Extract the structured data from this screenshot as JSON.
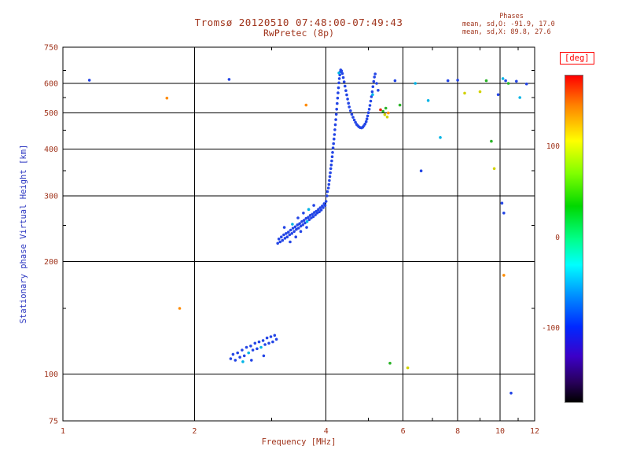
{
  "header": {
    "title": "Tromsø 20120510 07:48:00-07:49:43",
    "subtitle": "RwPretec (8p)",
    "phases_title": "Phases",
    "phases_o": "mean, sd,O: -91.9, 17.0",
    "phases_x": "mean, sd,X:  89.8, 27.6"
  },
  "colors": {
    "text_red": "#a0341c",
    "ylabel_blue": "#2a35c0",
    "deg_red": "#ff0000",
    "axis_black": "#000000"
  },
  "chart_data": {
    "type": "scatter",
    "title": "Tromsø 20120510 07:48:00-07:49:43",
    "subtitle": "RwPretec (8p)",
    "xlabel": "Frequency [MHz]",
    "ylabel": "Stationary phase Virtual Height [km]",
    "x_scale": "log",
    "y_scale": "log",
    "xlim": [
      1,
      12
    ],
    "ylim": [
      75,
      750
    ],
    "x_major_ticks": [
      1,
      2,
      4,
      6,
      8,
      10,
      12
    ],
    "x_minor_ticks": [
      3,
      5,
      7,
      9,
      11
    ],
    "y_major_ticks": [
      75,
      100,
      200,
      300,
      400,
      500,
      600,
      750
    ],
    "y_minor_ticks": [
      150,
      250,
      350,
      450,
      550,
      650
    ],
    "x_gridlines": [
      2,
      4,
      6,
      8,
      10
    ],
    "y_gridlines": [
      100,
      200,
      300,
      400,
      500,
      600
    ],
    "grid": true,
    "legend": "colorbar-right",
    "colorbar": {
      "label": "[deg]",
      "range": [
        -180,
        180
      ],
      "ticks": [
        100,
        0,
        -100
      ],
      "stops": [
        [
          0,
          "#ff0000"
        ],
        [
          9,
          "#ff8000"
        ],
        [
          20,
          "#ffff00"
        ],
        [
          30,
          "#80ff00"
        ],
        [
          40,
          "#00d800"
        ],
        [
          50,
          "#00ff88"
        ],
        [
          58,
          "#00ffff"
        ],
        [
          68,
          "#0088ff"
        ],
        [
          77,
          "#0028ff"
        ],
        [
          86,
          "#3c00c8"
        ],
        [
          94,
          "#28005a"
        ],
        [
          100,
          "#000000"
        ]
      ]
    },
    "palette": {
      "b": "#2446e6",
      "c": "#00b4e6",
      "g": "#2ab428",
      "y": "#d2d200",
      "o": "#ff8c00",
      "r": "#e62000",
      "k": "#202020"
    },
    "points": [
      [
        2.42,
        110,
        "b"
      ],
      [
        2.45,
        113,
        "b"
      ],
      [
        2.48,
        109,
        "b"
      ],
      [
        2.51,
        114,
        "b"
      ],
      [
        2.54,
        111,
        "b"
      ],
      [
        2.57,
        116,
        "b"
      ],
      [
        2.6,
        112,
        "b"
      ],
      [
        2.63,
        118,
        "b"
      ],
      [
        2.66,
        114,
        "c"
      ],
      [
        2.69,
        119,
        "b"
      ],
      [
        2.72,
        116,
        "b"
      ],
      [
        2.75,
        121,
        "b"
      ],
      [
        2.78,
        117,
        "b"
      ],
      [
        2.81,
        122,
        "b"
      ],
      [
        2.84,
        118,
        "c"
      ],
      [
        2.87,
        123,
        "b"
      ],
      [
        2.9,
        120,
        "b"
      ],
      [
        2.93,
        125,
        "b"
      ],
      [
        2.96,
        121,
        "b"
      ],
      [
        2.99,
        126,
        "b"
      ],
      [
        3.02,
        122,
        "b"
      ],
      [
        3.05,
        127,
        "b"
      ],
      [
        3.08,
        124,
        "b"
      ],
      [
        2.58,
        108,
        "c"
      ],
      [
        2.7,
        109,
        "b"
      ],
      [
        2.88,
        112,
        "b"
      ],
      [
        3.1,
        224,
        "b"
      ],
      [
        3.12,
        230,
        "b"
      ],
      [
        3.14,
        226,
        "b"
      ],
      [
        3.16,
        233,
        "b"
      ],
      [
        3.18,
        228,
        "b"
      ],
      [
        3.2,
        236,
        "b"
      ],
      [
        3.22,
        231,
        "b"
      ],
      [
        3.24,
        238,
        "b"
      ],
      [
        3.26,
        233,
        "b"
      ],
      [
        3.28,
        240,
        "b"
      ],
      [
        3.3,
        236,
        "b"
      ],
      [
        3.32,
        243,
        "b"
      ],
      [
        3.34,
        238,
        "b"
      ],
      [
        3.36,
        246,
        "b"
      ],
      [
        3.38,
        241,
        "b"
      ],
      [
        3.4,
        248,
        "b"
      ],
      [
        3.42,
        244,
        "b"
      ],
      [
        3.44,
        251,
        "b"
      ],
      [
        3.46,
        246,
        "b"
      ],
      [
        3.48,
        253,
        "b"
      ],
      [
        3.5,
        249,
        "b"
      ],
      [
        3.52,
        256,
        "b"
      ],
      [
        3.54,
        251,
        "b"
      ],
      [
        3.56,
        258,
        "b"
      ],
      [
        3.58,
        254,
        "b"
      ],
      [
        3.6,
        261,
        "b"
      ],
      [
        3.62,
        256,
        "c"
      ],
      [
        3.64,
        263,
        "b"
      ],
      [
        3.66,
        259,
        "b"
      ],
      [
        3.68,
        266,
        "b"
      ],
      [
        3.7,
        262,
        "b"
      ],
      [
        3.72,
        268,
        "b"
      ],
      [
        3.74,
        264,
        "b"
      ],
      [
        3.76,
        271,
        "b"
      ],
      [
        3.78,
        267,
        "b"
      ],
      [
        3.8,
        273,
        "b"
      ],
      [
        3.82,
        270,
        "b"
      ],
      [
        3.84,
        276,
        "b"
      ],
      [
        3.86,
        272,
        "b"
      ],
      [
        3.88,
        279,
        "b"
      ],
      [
        3.9,
        275,
        "b"
      ],
      [
        3.92,
        282,
        "b"
      ],
      [
        3.94,
        279,
        "b"
      ],
      [
        3.96,
        286,
        "b"
      ],
      [
        3.98,
        283,
        "b"
      ],
      [
        4.0,
        290,
        "b"
      ],
      [
        3.35,
        252,
        "c"
      ],
      [
        3.45,
        262,
        "b"
      ],
      [
        3.55,
        270,
        "b"
      ],
      [
        3.31,
        226,
        "b"
      ],
      [
        3.5,
        241,
        "b"
      ],
      [
        3.61,
        247,
        "b"
      ],
      [
        3.65,
        276,
        "c"
      ],
      [
        3.75,
        283,
        "b"
      ],
      [
        3.21,
        247,
        "b"
      ],
      [
        3.41,
        233,
        "b"
      ],
      [
        4.02,
        300,
        "b"
      ],
      [
        4.03,
        308,
        "b"
      ],
      [
        4.05,
        315,
        "b"
      ],
      [
        4.06,
        322,
        "b"
      ],
      [
        4.07,
        330,
        "b"
      ],
      [
        4.08,
        338,
        "b"
      ],
      [
        4.09,
        346,
        "b"
      ],
      [
        4.1,
        355,
        "b"
      ],
      [
        4.11,
        363,
        "b"
      ],
      [
        4.12,
        372,
        "b"
      ],
      [
        4.13,
        382,
        "b"
      ],
      [
        4.14,
        392,
        "b"
      ],
      [
        4.15,
        403,
        "b"
      ],
      [
        4.16,
        414,
        "b"
      ],
      [
        4.17,
        426,
        "b"
      ],
      [
        4.18,
        438,
        "b"
      ],
      [
        4.19,
        451,
        "b"
      ],
      [
        4.2,
        465,
        "b"
      ],
      [
        4.21,
        480,
        "b"
      ],
      [
        4.22,
        496,
        "b"
      ],
      [
        4.23,
        512,
        "b"
      ],
      [
        4.24,
        530,
        "b"
      ],
      [
        4.25,
        548,
        "b"
      ],
      [
        4.26,
        566,
        "b"
      ],
      [
        4.27,
        584,
        "b"
      ],
      [
        4.28,
        602,
        "b"
      ],
      [
        4.29,
        618,
        "b"
      ],
      [
        4.3,
        632,
        "b"
      ],
      [
        4.31,
        644,
        "b"
      ],
      [
        4.32,
        652,
        "b"
      ],
      [
        4.28,
        640,
        "c"
      ],
      [
        4.34,
        648,
        "b"
      ],
      [
        4.36,
        638,
        "b"
      ],
      [
        4.38,
        622,
        "b"
      ],
      [
        4.4,
        606,
        "b"
      ],
      [
        4.42,
        590,
        "b"
      ],
      [
        4.44,
        574,
        "b"
      ],
      [
        4.46,
        559,
        "b"
      ],
      [
        4.48,
        545,
        "b"
      ],
      [
        4.5,
        531,
        "b"
      ],
      [
        4.52,
        519,
        "b"
      ],
      [
        4.55,
        507,
        "b"
      ],
      [
        4.58,
        496,
        "b"
      ],
      [
        4.61,
        487,
        "b"
      ],
      [
        4.64,
        479,
        "b"
      ],
      [
        4.67,
        472,
        "b"
      ],
      [
        4.7,
        466,
        "b"
      ],
      [
        4.73,
        462,
        "b"
      ],
      [
        4.76,
        459,
        "b"
      ],
      [
        4.79,
        457,
        "b"
      ],
      [
        4.82,
        456,
        "b"
      ],
      [
        4.85,
        458,
        "b"
      ],
      [
        4.88,
        462,
        "b"
      ],
      [
        4.91,
        467,
        "b"
      ],
      [
        4.94,
        474,
        "b"
      ],
      [
        4.96,
        482,
        "b"
      ],
      [
        4.98,
        491,
        "b"
      ],
      [
        5.0,
        501,
        "b"
      ],
      [
        5.02,
        512,
        "b"
      ],
      [
        5.04,
        524,
        "b"
      ],
      [
        5.06,
        538,
        "b"
      ],
      [
        5.08,
        553,
        "b"
      ],
      [
        5.1,
        570,
        "b"
      ],
      [
        5.12,
        588,
        "b"
      ],
      [
        5.14,
        607,
        "b"
      ],
      [
        5.16,
        624,
        "b"
      ],
      [
        5.18,
        636,
        "b"
      ],
      [
        5.11,
        560,
        "c"
      ],
      [
        5.22,
        600,
        "b"
      ],
      [
        5.26,
        575,
        "b"
      ],
      [
        5.4,
        505,
        "g"
      ],
      [
        5.45,
        495,
        "y"
      ],
      [
        5.48,
        515,
        "g"
      ],
      [
        5.52,
        488,
        "y"
      ],
      [
        5.55,
        500,
        "o"
      ],
      [
        5.33,
        510,
        "r"
      ],
      [
        1.15,
        612,
        "b"
      ],
      [
        1.73,
        548,
        "o"
      ],
      [
        1.85,
        150,
        "o"
      ],
      [
        2.4,
        615,
        "b"
      ],
      [
        3.6,
        525,
        "o"
      ],
      [
        5.6,
        107,
        "g"
      ],
      [
        5.75,
        610,
        "b"
      ],
      [
        5.9,
        525,
        "g"
      ],
      [
        6.15,
        104,
        "y"
      ],
      [
        6.4,
        600,
        "c"
      ],
      [
        6.6,
        350,
        "b"
      ],
      [
        6.85,
        540,
        "c"
      ],
      [
        7.3,
        430,
        "c"
      ],
      [
        7.6,
        610,
        "b"
      ],
      [
        8.0,
        612,
        "b"
      ],
      [
        8.3,
        565,
        "y"
      ],
      [
        9.0,
        570,
        "y"
      ],
      [
        9.3,
        610,
        "g"
      ],
      [
        9.55,
        420,
        "g"
      ],
      [
        9.7,
        355,
        "y"
      ],
      [
        10.1,
        287,
        "b"
      ],
      [
        10.2,
        270,
        "b"
      ],
      [
        10.2,
        184,
        "o"
      ],
      [
        10.3,
        610,
        "b"
      ],
      [
        10.45,
        600,
        "g"
      ],
      [
        10.15,
        618,
        "c"
      ],
      [
        10.9,
        608,
        "b"
      ],
      [
        11.5,
        598,
        "b"
      ],
      [
        10.6,
        89,
        "b"
      ],
      [
        11.1,
        550,
        "c"
      ],
      [
        9.9,
        560,
        "b"
      ]
    ]
  }
}
